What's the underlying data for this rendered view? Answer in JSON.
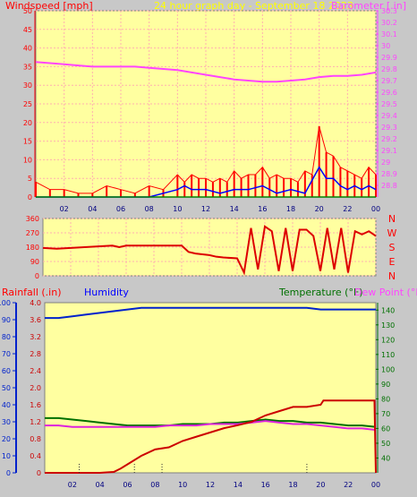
{
  "header": {
    "windspeed_label": "Windspeed [mph]",
    "graph_title": "24 hour graph day - September 18 2023",
    "barometer_label": "Barometer [.in]"
  },
  "colors": {
    "background": "#c8c8c8",
    "plot_background": "#ffffa0",
    "grid": "#ffb0b0",
    "wind": "#ff0000",
    "gust": "#0000ff",
    "wind_green": "#008000",
    "barometer": "#ff44ff",
    "direction": "#dd0000",
    "humidity": "#0022cc",
    "temperature": "#007000",
    "dewpoint": "#dd22dd",
    "rainfall": "#cc0000",
    "title": "#ffff00"
  },
  "time_ticks": [
    "02",
    "04",
    "06",
    "08",
    "10",
    "12",
    "14",
    "16",
    "18",
    "20",
    "22",
    "00"
  ],
  "compass": [
    "N",
    "W",
    "S",
    "E",
    "N"
  ],
  "bottom_header": {
    "rainfall_label": "Rainfall (.in)",
    "humidity_label": "Humidity",
    "temperature_label": "Temperature (°F)",
    "dewpoint_label": "Dew Point (°F)"
  },
  "chart_data": [
    {
      "type": "line",
      "title": "24 hour graph day - September 18 2023",
      "xlabel": "",
      "x_range_hours": [
        0,
        24
      ],
      "y_left": {
        "label": "Windspeed [mph]",
        "range": [
          0,
          50
        ],
        "ticks": [
          "0",
          "5",
          "10",
          "15",
          "20",
          "25",
          "30",
          "35",
          "40",
          "45",
          "50"
        ]
      },
      "y_right": {
        "label": "Barometer [.in]",
        "range": [
          28.7,
          30.3
        ],
        "ticks": [
          "28.8",
          "28.9",
          "29",
          "29.1",
          "29.2",
          "29.3",
          "29.4",
          "29.5",
          "29.6",
          "29.7",
          "29.8",
          "29.9",
          "30",
          "30.1",
          "30.2",
          "30.3"
        ]
      },
      "grid": true,
      "series": [
        {
          "name": "Barometer [.in]",
          "axis": "right",
          "x": [
            0,
            1,
            2,
            3,
            4,
            5,
            6,
            7,
            8,
            9,
            10,
            11,
            12,
            13,
            14,
            15,
            16,
            17,
            18,
            19,
            20,
            21,
            22,
            23,
            24
          ],
          "values": [
            29.86,
            29.85,
            29.84,
            29.83,
            29.82,
            29.82,
            29.82,
            29.82,
            29.81,
            29.8,
            29.79,
            29.77,
            29.75,
            29.73,
            29.71,
            29.7,
            29.69,
            29.69,
            29.7,
            29.71,
            29.73,
            29.74,
            29.74,
            29.75,
            29.77
          ]
        },
        {
          "name": "Windspeed [mph]",
          "axis": "left",
          "x": [
            0,
            1,
            2,
            3,
            4,
            5,
            6,
            7,
            8,
            9,
            10,
            10.5,
            11,
            11.5,
            12,
            12.5,
            13,
            13.5,
            14,
            14.5,
            15,
            15.5,
            16,
            16.5,
            17,
            17.5,
            18,
            18.5,
            19,
            19.5,
            20,
            20.5,
            21,
            21.5,
            22,
            22.5,
            23,
            23.5,
            24
          ],
          "values": [
            4,
            2,
            2,
            1,
            1,
            3,
            2,
            1,
            3,
            2,
            6,
            4,
            6,
            5,
            5,
            4,
            5,
            4,
            7,
            5,
            6,
            6,
            8,
            5,
            6,
            5,
            5,
            4,
            7,
            6,
            19,
            12,
            11,
            8,
            7,
            6,
            5,
            8,
            6
          ]
        },
        {
          "name": "Gust",
          "axis": "left",
          "x": [
            0,
            2,
            4,
            6,
            8,
            10,
            10.5,
            11,
            12,
            13,
            14,
            15,
            16,
            17,
            18,
            19,
            20,
            20.5,
            21,
            21.5,
            22,
            22.5,
            23,
            23.5,
            24
          ],
          "values": [
            0,
            0,
            0,
            0,
            0,
            2,
            3,
            2,
            2,
            1,
            2,
            2,
            3,
            1,
            2,
            1,
            8,
            5,
            5,
            3,
            2,
            3,
            2,
            3,
            2
          ]
        }
      ]
    },
    {
      "type": "line",
      "title": "",
      "xlabel": "",
      "x_range_hours": [
        0,
        24
      ],
      "y_left": {
        "label": "",
        "range": [
          0,
          360
        ],
        "ticks": [
          "0",
          "90",
          "180",
          "270",
          "360"
        ]
      },
      "y_right_labels": [
        "N",
        "W",
        "S",
        "E",
        "N"
      ],
      "series": [
        {
          "name": "Wind Direction",
          "x": [
            0,
            1,
            2,
            3,
            4,
            5,
            5.5,
            6,
            7,
            8,
            9,
            10,
            10.5,
            11,
            12,
            12.5,
            13,
            14,
            14.5,
            15,
            15.5,
            16,
            16.5,
            17,
            17.5,
            18,
            18.5,
            19,
            19.5,
            20,
            20.5,
            21,
            21.5,
            22,
            22.5,
            23,
            23.5,
            24
          ],
          "values": [
            175,
            170,
            175,
            180,
            185,
            190,
            180,
            190,
            190,
            190,
            190,
            190,
            150,
            140,
            130,
            120,
            115,
            110,
            20,
            300,
            40,
            310,
            280,
            30,
            300,
            30,
            290,
            290,
            250,
            30,
            300,
            40,
            300,
            20,
            280,
            260,
            280,
            250
          ]
        }
      ]
    },
    {
      "type": "line",
      "title": "",
      "xlabel": "",
      "x_range_hours": [
        0,
        24
      ],
      "y_left": {
        "label": "Humidity",
        "range": [
          0,
          100
        ],
        "ticks": [
          "0",
          "10",
          "20",
          "30",
          "40",
          "50",
          "60",
          "70",
          "80",
          "90",
          "100"
        ]
      },
      "y_left_inner": {
        "label": "Rainfall (.in)",
        "range": [
          0,
          4.0
        ],
        "ticks": [
          "0",
          "0.4",
          "0.8",
          "1.2",
          "1.6",
          "2.0",
          "2.4",
          "2.8",
          "3.2",
          "3.6",
          "4.0"
        ]
      },
      "y_right": {
        "label": "Temperature (°F)",
        "range": [
          30,
          145
        ],
        "ticks": [
          "40",
          "50",
          "60",
          "70",
          "80",
          "90",
          "100",
          "110",
          "120",
          "130",
          "140"
        ]
      },
      "grid": false,
      "series": [
        {
          "name": "Humidity",
          "axis": "left",
          "x": [
            0,
            1,
            2,
            3,
            4,
            5,
            6,
            7,
            8,
            9,
            10,
            11,
            12,
            13,
            14,
            15,
            16,
            17,
            18,
            19,
            20,
            21,
            22,
            23,
            24
          ],
          "values": [
            91,
            91,
            92,
            93,
            94,
            95,
            96,
            97,
            97,
            97,
            97,
            97,
            97,
            97,
            97,
            97,
            97,
            97,
            97,
            97,
            96,
            96,
            96,
            96,
            96
          ]
        },
        {
          "name": "Temperature (°F)",
          "axis": "right",
          "x": [
            0,
            1,
            2,
            3,
            4,
            5,
            6,
            7,
            8,
            9,
            10,
            11,
            12,
            13,
            14,
            15,
            16,
            17,
            18,
            19,
            20,
            21,
            22,
            23,
            24
          ],
          "values": [
            67,
            67,
            66,
            65,
            64,
            63,
            62,
            62,
            62,
            62,
            63,
            63,
            63,
            64,
            64,
            65,
            66,
            65,
            65,
            64,
            64,
            63,
            62,
            62,
            61
          ]
        },
        {
          "name": "Dew Point (°F)",
          "axis": "right",
          "x": [
            0,
            1,
            2,
            3,
            4,
            5,
            6,
            7,
            8,
            9,
            10,
            11,
            12,
            13,
            14,
            15,
            16,
            17,
            18,
            19,
            20,
            21,
            22,
            23,
            24
          ],
          "values": [
            62,
            62,
            61,
            61,
            61,
            61,
            61,
            61,
            61,
            62,
            62,
            62,
            63,
            63,
            63,
            64,
            65,
            64,
            63,
            63,
            62,
            61,
            60,
            60,
            59
          ]
        },
        {
          "name": "Rainfall (.in)",
          "axis": "left_inner",
          "x": [
            0,
            1,
            2,
            3,
            4,
            5,
            5.5,
            6,
            7,
            8,
            9,
            10,
            11,
            12,
            13,
            14,
            15,
            16,
            17,
            18,
            19,
            20,
            20.2,
            21,
            22,
            23,
            23.9,
            24
          ],
          "values": [
            0,
            0,
            0,
            0,
            0,
            0.02,
            0.1,
            0.2,
            0.4,
            0.55,
            0.6,
            0.75,
            0.85,
            0.95,
            1.05,
            1.12,
            1.2,
            1.35,
            1.45,
            1.55,
            1.55,
            1.6,
            1.7,
            1.7,
            1.7,
            1.7,
            1.7,
            0
          ]
        }
      ]
    }
  ]
}
